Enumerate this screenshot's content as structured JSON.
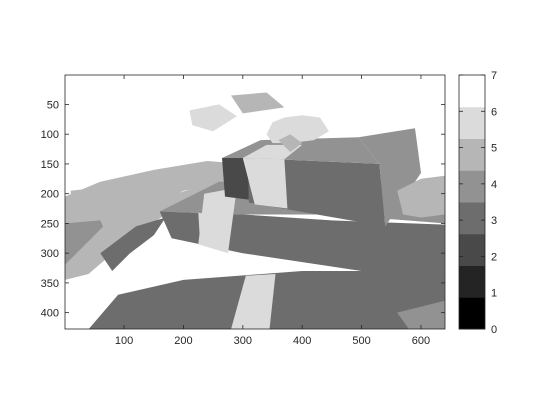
{
  "chart_data": {
    "type": "heatmap",
    "title": "",
    "xlabel": "",
    "ylabel": "",
    "xlim": [
      0.5,
      640.5
    ],
    "ylim": [
      427.5,
      0.5
    ],
    "y_direction": "down",
    "x_ticks": [
      100,
      200,
      300,
      400,
      500,
      600
    ],
    "y_ticks": [
      50,
      100,
      150,
      200,
      250,
      300,
      350,
      400
    ],
    "colormap": "gray",
    "color_levels": 8,
    "clim": [
      0,
      7
    ],
    "colorbar": {
      "position": "right",
      "ticks": [
        0,
        1,
        2,
        3,
        4,
        5,
        6,
        7
      ]
    },
    "grid": false,
    "regions": [
      {
        "name": "background",
        "value": 7,
        "points": [
          [
            0,
            0
          ],
          [
            640,
            0
          ],
          [
            640,
            428
          ],
          [
            0,
            428
          ]
        ]
      },
      {
        "name": "wrap-sheet",
        "value": 5,
        "points": [
          [
            0,
            205
          ],
          [
            60,
            180
          ],
          [
            150,
            160
          ],
          [
            240,
            145
          ],
          [
            300,
            150
          ],
          [
            300,
            175
          ],
          [
            200,
            195
          ],
          [
            150,
            220
          ],
          [
            110,
            240
          ],
          [
            60,
            265
          ],
          [
            0,
            275
          ]
        ]
      },
      {
        "name": "wrap-left-fold",
        "value": 5,
        "points": [
          [
            10,
            195
          ],
          [
            55,
            190
          ],
          [
            60,
            300
          ],
          [
            20,
            320
          ]
        ]
      },
      {
        "name": "wrap-left-shadow",
        "value": 4,
        "points": [
          [
            0,
            250
          ],
          [
            60,
            245
          ],
          [
            80,
            290
          ],
          [
            30,
            330
          ],
          [
            0,
            320
          ]
        ]
      },
      {
        "name": "ribbon-wave",
        "value": 5,
        "points": [
          [
            0,
            320
          ],
          [
            70,
            250
          ],
          [
            140,
            215
          ],
          [
            220,
            190
          ],
          [
            300,
            170
          ],
          [
            330,
            178
          ],
          [
            260,
            205
          ],
          [
            170,
            235
          ],
          [
            110,
            275
          ],
          [
            40,
            335
          ],
          [
            0,
            345
          ]
        ]
      },
      {
        "name": "ribbon-wave-shadow",
        "value": 3,
        "points": [
          [
            60,
            300
          ],
          [
            120,
            255
          ],
          [
            170,
            240
          ],
          [
            150,
            270
          ],
          [
            110,
            300
          ],
          [
            80,
            330
          ]
        ]
      },
      {
        "name": "wrap-top-right",
        "value": 5,
        "points": [
          [
            280,
            35
          ],
          [
            340,
            30
          ],
          [
            370,
            55
          ],
          [
            300,
            65
          ]
        ]
      },
      {
        "name": "wrap-top-left",
        "value": 6,
        "points": [
          [
            210,
            60
          ],
          [
            260,
            50
          ],
          [
            290,
            70
          ],
          [
            250,
            95
          ],
          [
            215,
            85
          ]
        ]
      },
      {
        "name": "bottom-box",
        "value": 3,
        "points": [
          [
            40,
            428
          ],
          [
            90,
            370
          ],
          [
            200,
            345
          ],
          [
            400,
            330
          ],
          [
            640,
            330
          ],
          [
            640,
            428
          ]
        ]
      },
      {
        "name": "bottom-box-ribbon",
        "value": 6,
        "points": [
          [
            280,
            428
          ],
          [
            305,
            338
          ],
          [
            355,
            335
          ],
          [
            345,
            428
          ]
        ]
      },
      {
        "name": "middle-box-top",
        "value": 4,
        "points": [
          [
            160,
            230
          ],
          [
            260,
            180
          ],
          [
            640,
            180
          ],
          [
            640,
            250
          ],
          [
            450,
            235
          ],
          [
            300,
            235
          ]
        ]
      },
      {
        "name": "middle-box-front",
        "value": 3,
        "points": [
          [
            160,
            230
          ],
          [
            300,
            235
          ],
          [
            450,
            245
          ],
          [
            640,
            252
          ],
          [
            640,
            335
          ],
          [
            500,
            330
          ],
          [
            300,
            300
          ],
          [
            180,
            275
          ]
        ]
      },
      {
        "name": "middle-box-ribbon",
        "value": 6,
        "points": [
          [
            235,
            200
          ],
          [
            290,
            190
          ],
          [
            275,
            300
          ],
          [
            225,
            285
          ]
        ]
      },
      {
        "name": "middle-box-ribbon-front",
        "value": 6,
        "points": [
          [
            225,
            232
          ],
          [
            262,
            236
          ],
          [
            262,
            288
          ],
          [
            228,
            282
          ]
        ]
      },
      {
        "name": "small-box-left",
        "value": 2,
        "points": [
          [
            265,
            140
          ],
          [
            310,
            140
          ],
          [
            310,
            210
          ],
          [
            270,
            205
          ]
        ]
      },
      {
        "name": "small-box-front",
        "value": 3,
        "points": [
          [
            310,
            140
          ],
          [
            530,
            150
          ],
          [
            540,
            255
          ],
          [
            310,
            215
          ]
        ]
      },
      {
        "name": "small-box-top",
        "value": 4,
        "points": [
          [
            265,
            140
          ],
          [
            330,
            110
          ],
          [
            495,
            105
          ],
          [
            530,
            150
          ],
          [
            310,
            140
          ]
        ]
      },
      {
        "name": "small-box-right",
        "value": 4,
        "points": [
          [
            495,
            105
          ],
          [
            590,
            90
          ],
          [
            600,
            165
          ],
          [
            540,
            255
          ],
          [
            530,
            150
          ]
        ]
      },
      {
        "name": "small-box-ribbon-v",
        "value": 6,
        "points": [
          [
            300,
            140
          ],
          [
            370,
            142
          ],
          [
            375,
            225
          ],
          [
            320,
            218
          ]
        ]
      },
      {
        "name": "small-box-ribbon-top",
        "value": 6,
        "points": [
          [
            300,
            140
          ],
          [
            340,
            118
          ],
          [
            400,
            118
          ],
          [
            370,
            142
          ]
        ]
      },
      {
        "name": "bow",
        "value": 6,
        "points": [
          [
            340,
            100
          ],
          [
            350,
            80
          ],
          [
            370,
            72
          ],
          [
            400,
            68
          ],
          [
            430,
            72
          ],
          [
            445,
            95
          ],
          [
            420,
            110
          ],
          [
            380,
            115
          ],
          [
            350,
            115
          ]
        ]
      },
      {
        "name": "bow-shadow",
        "value": 5,
        "points": [
          [
            360,
            110
          ],
          [
            380,
            100
          ],
          [
            400,
            115
          ],
          [
            380,
            130
          ]
        ]
      },
      {
        "name": "right-cloth",
        "value": 5,
        "points": [
          [
            560,
            195
          ],
          [
            600,
            175
          ],
          [
            640,
            170
          ],
          [
            640,
            235
          ],
          [
            600,
            240
          ],
          [
            570,
            235
          ]
        ]
      },
      {
        "name": "lower-right-cloth",
        "value": 4,
        "points": [
          [
            560,
            400
          ],
          [
            640,
            380
          ],
          [
            640,
            428
          ],
          [
            580,
            428
          ]
        ]
      }
    ]
  }
}
